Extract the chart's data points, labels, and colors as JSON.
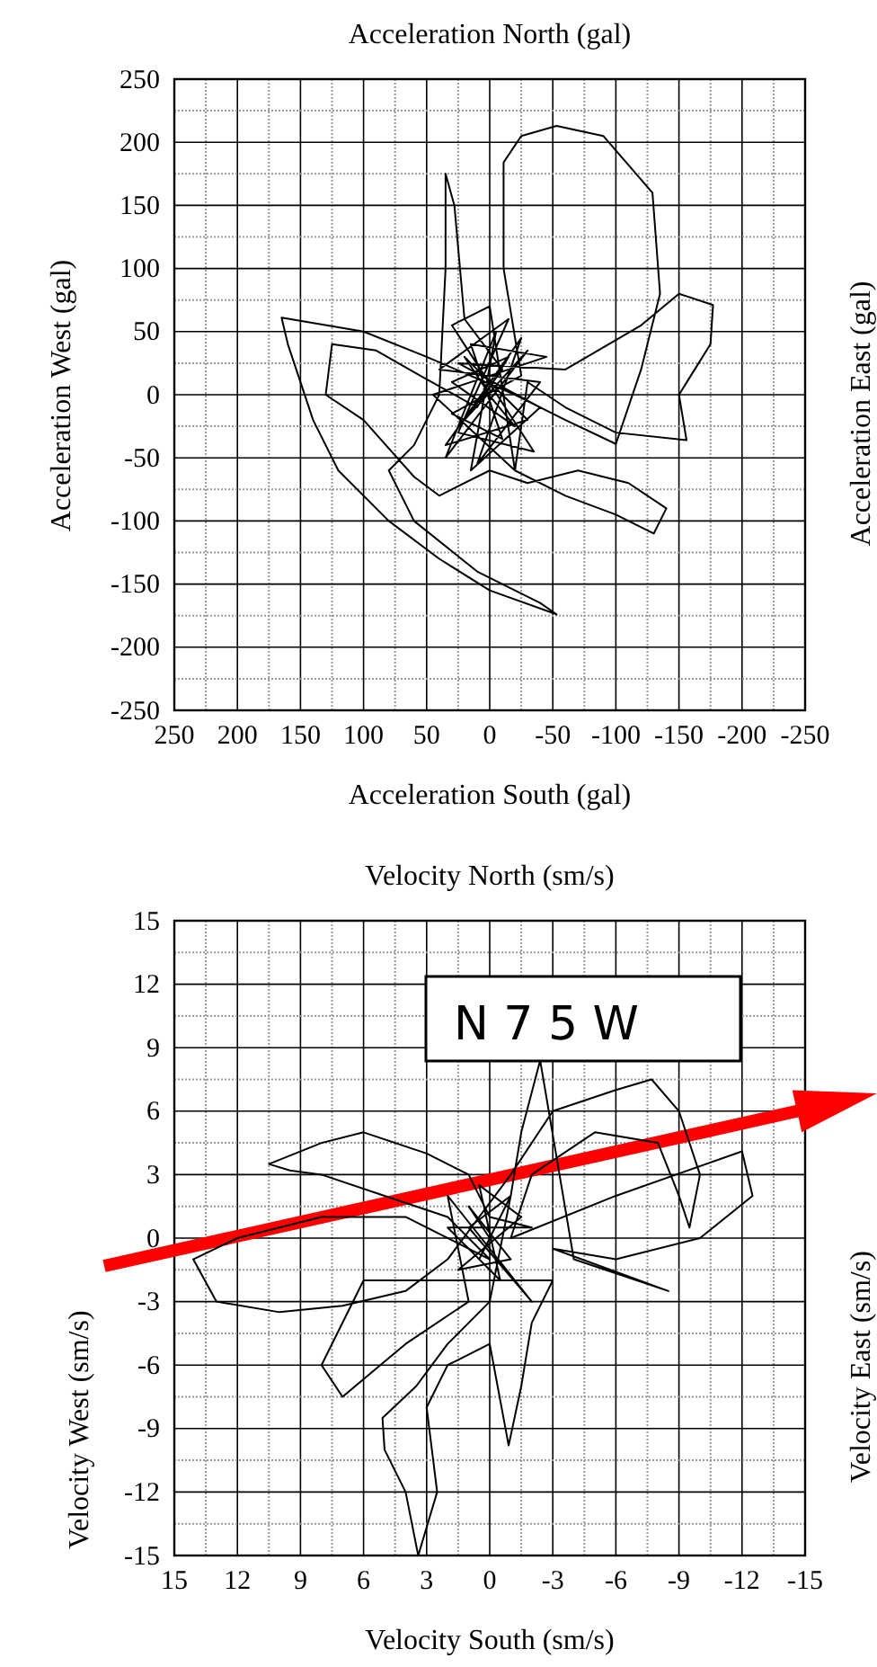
{
  "chart_data": [
    {
      "type": "line",
      "title": "Acceleration North (gal)",
      "xlabel": "Acceleration South (gal)",
      "ylabel": "Acceleration West (gal)",
      "y2label": "Acceleration East (gal)",
      "xlim": [
        250,
        -250
      ],
      "ylim": [
        -250,
        250
      ],
      "xticks": [
        250,
        200,
        150,
        100,
        50,
        0,
        -50,
        -100,
        -150,
        -200,
        -250
      ],
      "yticks": [
        -250,
        -200,
        -150,
        -100,
        -50,
        0,
        50,
        100,
        150,
        200,
        250
      ],
      "grid": true,
      "line_style": "solid",
      "marker": "none",
      "series": [
        {
          "color": "#000000",
          "x": [
            0,
            20,
            -30,
            35,
            -25,
            10,
            -40,
            40,
            -15,
            25,
            -35,
            30,
            0,
            -20,
            45,
            -45,
            15,
            -10,
            30,
            -25,
            -11,
            -11,
            -25,
            -53,
            -90,
            -129,
            -135,
            -120,
            -100,
            -60,
            -20,
            50,
            100,
            165,
            160,
            140,
            120,
            80,
            40,
            0,
            -53,
            -40,
            10,
            60,
            80,
            60,
            40,
            35,
            35,
            28,
            20,
            -10,
            20,
            -30,
            35,
            -5,
            15,
            -40,
            25,
            -60,
            -120,
            -150,
            -177,
            -175,
            -150,
            -156,
            -100,
            -60,
            -30,
            -20,
            -60,
            -100,
            -130,
            -140,
            -110,
            -70,
            -30,
            0,
            40,
            60,
            100,
            130,
            125,
            90,
            55,
            10,
            -15,
            30,
            -20,
            5
          ],
          "values": [
            0,
            30,
            -20,
            -40,
            45,
            -55,
            10,
            20,
            60,
            -30,
            -45,
            55,
            70,
            -60,
            0,
            30,
            40,
            -35,
            -15,
            15,
            100,
            184,
            205,
            213,
            205,
            160,
            80,
            20,
            -39,
            -20,
            0,
            30,
            50,
            61,
            40,
            -20,
            -60,
            -100,
            -130,
            -155,
            -174,
            -165,
            -140,
            -100,
            -60,
            -40,
            0,
            100,
            175,
            150,
            60,
            20,
            -20,
            35,
            -50,
            50,
            -60,
            -10,
            25,
            20,
            55,
            80,
            71,
            40,
            0,
            -36,
            -30,
            -10,
            10,
            -60,
            -80,
            -95,
            -110,
            -90,
            -70,
            -60,
            -70,
            -60,
            -80,
            -65,
            -20,
            0,
            40,
            35,
            15,
            -10,
            30,
            10,
            -25,
            5
          ]
        }
      ]
    },
    {
      "type": "line",
      "title": "Velocity North (sm/s)",
      "xlabel": "Velocity South (sm/s)",
      "ylabel": "Velocity West (sm/s)",
      "y2label": "Velocity East (sm/s)",
      "xlim": [
        15,
        -15
      ],
      "ylim": [
        -15,
        15
      ],
      "xticks": [
        15,
        12,
        9,
        6,
        3,
        0,
        -3,
        -6,
        -9,
        -12,
        -15
      ],
      "yticks": [
        -15,
        -12,
        -9,
        -6,
        -3,
        0,
        3,
        6,
        9,
        12,
        15
      ],
      "grid": true,
      "line_style": "solid",
      "marker": "none",
      "annotations": [
        "N 7 5 W"
      ],
      "series": [
        {
          "color": "#000000",
          "x": [
            0,
            1,
            -1,
            1.5,
            -1.5,
            0.5,
            -0.5,
            2,
            -2,
            0,
            1,
            3,
            6,
            8,
            10.5,
            9.5,
            8,
            5,
            2,
            0,
            4,
            8,
            12,
            14.1,
            13,
            10,
            7,
            4,
            2,
            -1,
            -3,
            -6,
            -7.7,
            -9,
            -10,
            -9.5,
            -9,
            -8,
            -5,
            -2,
            -1,
            -6,
            -12,
            -12.5,
            -10,
            -6,
            -3,
            -8.5,
            -4,
            -2.4,
            -1.5,
            -1,
            0,
            2,
            3.5,
            5.1,
            5,
            4,
            3.4,
            2.5,
            3,
            2,
            0,
            -0.9,
            -1.5,
            -2,
            -3,
            6,
            8,
            7,
            4,
            1,
            2,
            -2,
            1,
            -1,
            0.5
          ],
          "values": [
            0,
            1.5,
            -1,
            -1.5,
            1,
            2.5,
            -2,
            0.5,
            0.5,
            1,
            3,
            4,
            5,
            4.5,
            3.5,
            3.2,
            3,
            2,
            1,
            -1,
            1,
            1,
            0,
            -1,
            -3,
            -3.5,
            -3.2,
            -2.5,
            -1,
            3,
            6,
            7,
            7.5,
            6,
            3,
            0.5,
            2,
            4.5,
            5,
            3,
            0,
            2,
            4.1,
            2,
            0,
            -1,
            -0.5,
            -2.5,
            -1,
            8.4,
            5,
            2,
            -3,
            -5,
            -7,
            -8.5,
            -10,
            -12,
            -15,
            -12,
            -8,
            -6,
            -5,
            -9.8,
            -7,
            -4,
            -2,
            -2,
            -6,
            -7.5,
            -5,
            -3,
            2,
            -3,
            0.5,
            2,
            -1
          ]
        }
      ]
    }
  ]
}
